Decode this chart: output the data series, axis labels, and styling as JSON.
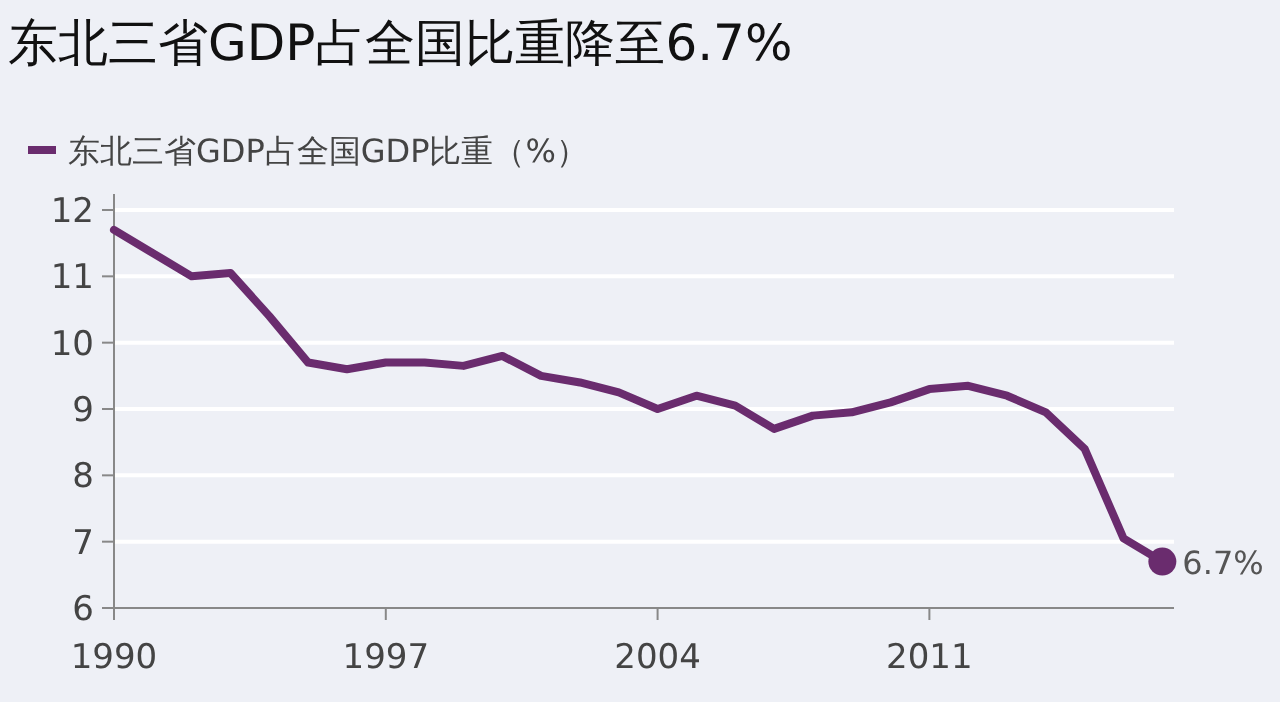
{
  "chart_data": {
    "type": "line",
    "title": "东北三省GDP占全国比重降至6.7%",
    "x": [
      1990,
      1991,
      1992,
      1993,
      1994,
      1995,
      1996,
      1997,
      1998,
      1999,
      2000,
      2001,
      2002,
      2003,
      2004,
      2005,
      2006,
      2007,
      2008,
      2009,
      2010,
      2011,
      2012,
      2013,
      2014,
      2015,
      2016,
      2017
    ],
    "series": [
      {
        "name": "东北三省GDP占全国GDP比重（%）",
        "color": "#6a2c6e",
        "values": [
          11.7,
          11.35,
          11.0,
          11.05,
          10.4,
          9.7,
          9.6,
          9.7,
          9.7,
          9.65,
          9.8,
          9.5,
          9.4,
          9.25,
          9.0,
          9.2,
          9.05,
          8.7,
          8.9,
          8.95,
          9.1,
          9.3,
          9.35,
          9.2,
          8.95,
          8.4,
          7.05,
          6.7
        ]
      }
    ],
    "xlim": [
      1990,
      2017.3
    ],
    "xticks": [
      1990,
      1997,
      2004,
      2011
    ],
    "ylim": [
      6,
      12
    ],
    "yticks": [
      6,
      7,
      8,
      9,
      10,
      11,
      12
    ],
    "grid": "y",
    "legend": "top left",
    "marker": "none",
    "line_style": "solid",
    "annotations": [
      {
        "text": "6.7%",
        "x": 2017,
        "y": 6.7
      }
    ]
  }
}
